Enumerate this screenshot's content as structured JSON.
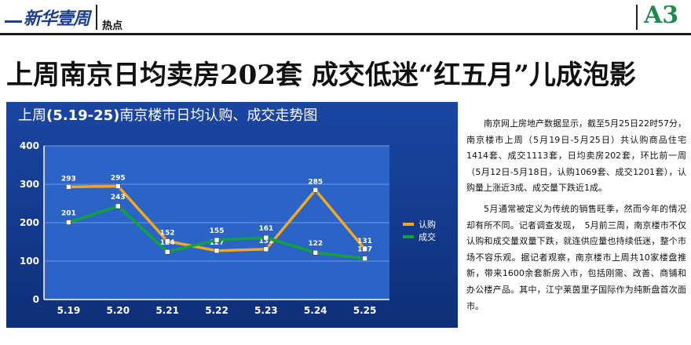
{
  "masthead": {
    "brand": "新华壹周",
    "section": "热点",
    "page": "A3"
  },
  "headline": "上周南京日均卖房202套 成交低迷“红五月”儿成泡影",
  "chart_data": {
    "type": "line",
    "title_parts": [
      "上周",
      "(5.19-25)",
      "南京楼市日均认购、成交走势图"
    ],
    "categories": [
      "5.19",
      "5.20",
      "5.21",
      "5.22",
      "5.23",
      "5.24",
      "5.25"
    ],
    "series": [
      {
        "name": "认购",
        "color": "#f2a81f",
        "values": [
          293,
          295,
          152,
          127,
          131,
          285,
          131
        ]
      },
      {
        "name": "成交",
        "color": "#10a33a",
        "values": [
          201,
          243,
          124,
          155,
          161,
          122,
          107
        ]
      }
    ],
    "ylim": [
      0,
      400
    ],
    "yticks": [
      "0",
      "100",
      "200",
      "300",
      "400"
    ],
    "grid": true,
    "legend": "right"
  },
  "article": {
    "paragraphs": [
      "南京网上房地产数据显示，截至5月25日22时57分，南京楼市上周（5月19日-5月25日）共认购商品住宅1414套、成交1113套，日均卖房202套，环比前一周（5月12日-5月18日，认购1069套、成交1201套），认购量上涨近3成、成交量下跌近1成。",
      "5月通常被定义为传统的销售旺季，然而今年的情况却有所不同。记者调查发现，　5月前三周，南京楼市不仅认购和成交量双量下跌，就连供应量也持续低迷，整个市场不容乐观。据记者观察，南京楼市上周共10家楼盘推新，带来1600余套新房入市，包括刚需、改善、商铺和办公楼产品。其中，江宁莱茵里子国际作为纯新盘首次面市。"
    ]
  }
}
